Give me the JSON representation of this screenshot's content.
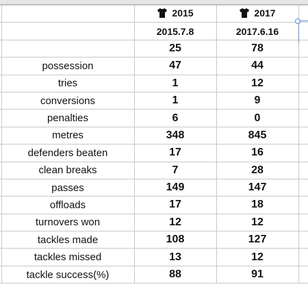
{
  "header": {
    "team_a": {
      "year": "2015",
      "date": "2015.7.8",
      "icon": "rugby-jersey-icon"
    },
    "team_b": {
      "year": "2017",
      "date": "2017.6.16",
      "icon": "rugby-jersey-icon"
    }
  },
  "rows": [
    {
      "label": "",
      "a": "25",
      "b": "78"
    },
    {
      "label": "possession",
      "a": "47",
      "b": "44"
    },
    {
      "label": "tries",
      "a": "1",
      "b": "12"
    },
    {
      "label": "conversions",
      "a": "1",
      "b": "9"
    },
    {
      "label": "penalties",
      "a": "6",
      "b": "0"
    },
    {
      "label": "metres",
      "a": "348",
      "b": "845"
    },
    {
      "label": "defenders beaten",
      "a": "17",
      "b": "16"
    },
    {
      "label": "clean breaks",
      "a": "7",
      "b": "28"
    },
    {
      "label": "passes",
      "a": "149",
      "b": "147"
    },
    {
      "label": "offloads",
      "a": "17",
      "b": "18"
    },
    {
      "label": "turnovers won",
      "a": "12",
      "b": "12"
    },
    {
      "label": "tackles made",
      "a": "108",
      "b": "127"
    },
    {
      "label": "tackles missed",
      "a": "13",
      "b": "12"
    },
    {
      "label": "tackle success(%)",
      "a": "88",
      "b": "91"
    }
  ],
  "colors": {
    "grid": "#c8c8c8",
    "selection": "#5b8fd6",
    "jersey": "#111111"
  }
}
